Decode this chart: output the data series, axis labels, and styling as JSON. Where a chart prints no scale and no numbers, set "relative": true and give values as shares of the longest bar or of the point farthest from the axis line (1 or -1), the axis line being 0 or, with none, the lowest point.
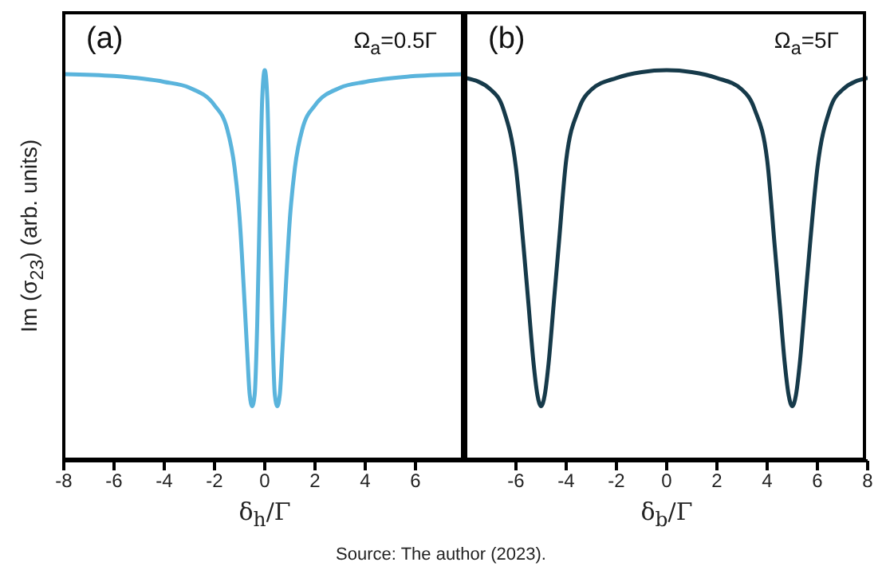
{
  "chart_data": [
    {
      "type": "line",
      "relative": true,
      "xlabel": "δ$_{h}$/Γ",
      "ylabel": "Im (σ$_{23}$) (arb. units)",
      "annotations": [
        "(a)",
        "Ω$_{a}$=0.5Γ"
      ],
      "xlim": [
        -8,
        8
      ],
      "xticks": [
        -8,
        -6,
        -4,
        -2,
        0,
        2,
        4,
        6
      ],
      "grid": false,
      "legend": false,
      "marker": "none",
      "line_style": "solid",
      "series": [
        {
          "color": "#5ab4dc",
          "x": [
            -8,
            -6,
            -4,
            -3,
            -2,
            -1.5,
            -1.2,
            -1,
            -0.8,
            -0.7,
            -0.6,
            -0.5,
            -0.4,
            -0.3,
            -0.2,
            -0.1,
            0,
            0.1,
            0.2,
            0.3,
            0.4,
            0.5,
            0.6,
            0.7,
            0.8,
            1,
            1.2,
            1.5,
            2,
            3,
            4,
            6,
            8
          ],
          "values": [
            0.99,
            0.985,
            0.97,
            0.955,
            0.91,
            0.85,
            0.75,
            0.62,
            0.4,
            0.28,
            0.17,
            0.14,
            0.17,
            0.35,
            0.65,
            0.93,
            1,
            0.93,
            0.65,
            0.35,
            0.17,
            0.14,
            0.17,
            0.28,
            0.4,
            0.62,
            0.75,
            0.85,
            0.91,
            0.955,
            0.97,
            0.985,
            0.99
          ]
        }
      ]
    },
    {
      "type": "line",
      "relative": true,
      "xlabel": "δ$_{b}$/Γ",
      "annotations": [
        "(b)",
        "Ω$_{a}$=5Γ",
        "Source: The author (2023)."
      ],
      "xlim": [
        -8,
        8
      ],
      "xticks": [
        -6,
        -4,
        -2,
        0,
        2,
        4,
        6,
        8
      ],
      "grid": false,
      "legend": false,
      "marker": "none",
      "line_style": "solid",
      "series": [
        {
          "color": "#163a4a",
          "x": [
            -8,
            -7,
            -6.5,
            -6,
            -5.7,
            -5.5,
            -5.3,
            -5.15,
            -5,
            -4.85,
            -4.7,
            -4.5,
            -4.3,
            -4,
            -3.5,
            -3,
            -2,
            -1,
            0,
            1,
            2,
            3,
            3.5,
            4,
            4.3,
            4.5,
            4.7,
            4.85,
            5,
            5.15,
            5.3,
            5.5,
            5.7,
            6,
            6.5,
            7,
            8
          ],
          "values": [
            0.98,
            0.95,
            0.9,
            0.75,
            0.55,
            0.4,
            0.25,
            0.17,
            0.14,
            0.17,
            0.25,
            0.4,
            0.55,
            0.77,
            0.9,
            0.95,
            0.98,
            0.995,
            1,
            0.995,
            0.98,
            0.95,
            0.9,
            0.77,
            0.55,
            0.4,
            0.25,
            0.17,
            0.14,
            0.17,
            0.25,
            0.4,
            0.55,
            0.75,
            0.9,
            0.95,
            0.98
          ]
        }
      ]
    }
  ]
}
